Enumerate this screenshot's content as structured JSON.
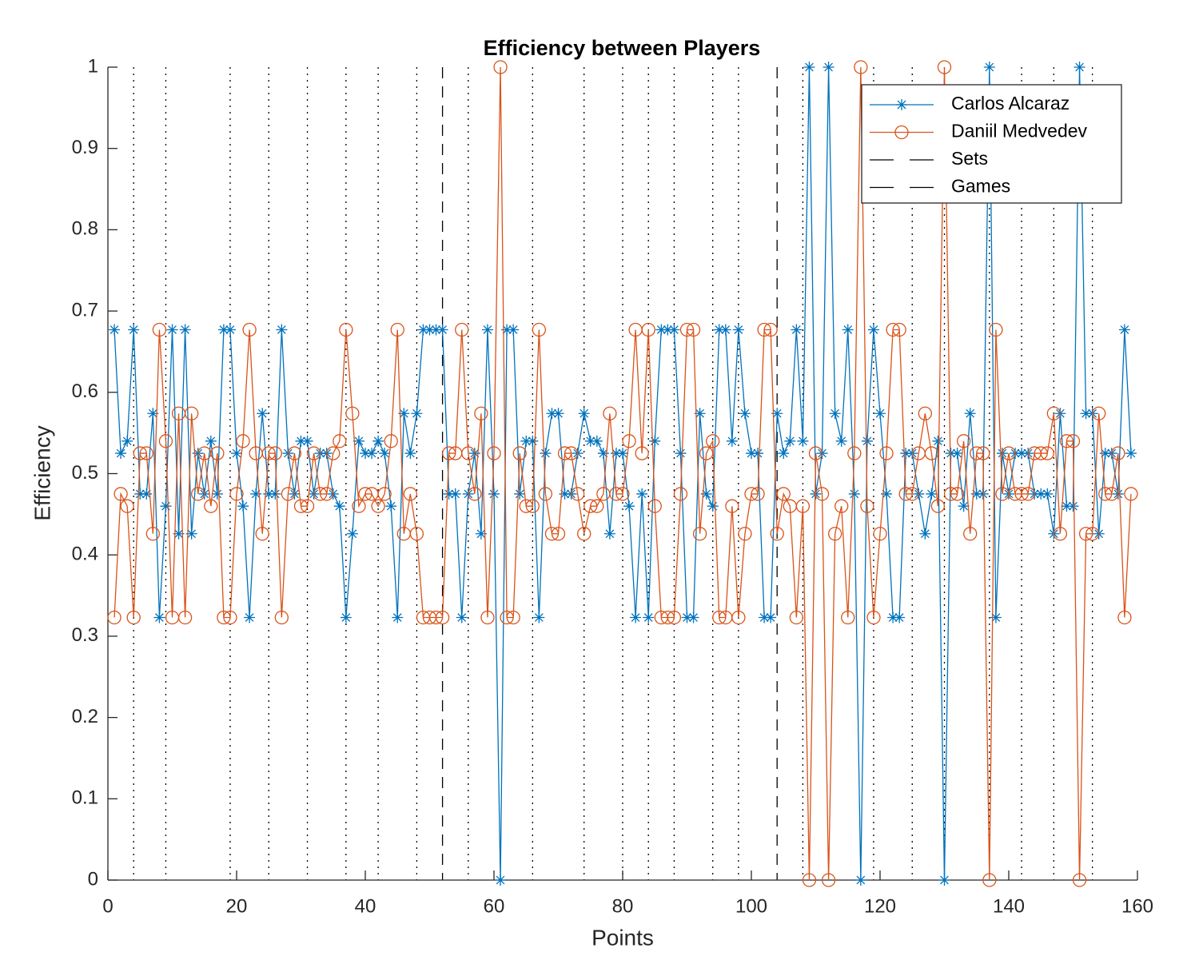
{
  "chart_data": {
    "type": "line",
    "title": "Efficiency between Players",
    "xlabel": "Points",
    "ylabel": "Efficiency",
    "x": [
      1,
      2,
      3,
      4,
      5,
      6,
      7,
      8,
      9,
      10,
      11,
      12,
      13,
      14,
      15,
      16,
      17,
      18,
      19,
      20,
      21,
      22,
      23,
      24,
      25,
      26,
      27,
      28,
      29,
      30,
      31,
      32,
      33,
      34,
      35,
      36,
      37,
      38,
      39,
      40,
      41,
      42,
      43,
      44,
      45,
      46,
      47,
      48,
      49,
      50,
      51,
      52,
      53,
      54,
      55,
      56,
      57,
      58,
      59,
      60,
      61,
      62,
      63,
      64,
      65,
      66,
      67,
      68,
      69,
      70,
      71,
      72,
      73,
      74,
      75,
      76,
      77,
      78,
      79,
      80,
      81,
      82,
      83,
      84,
      85,
      86,
      87,
      88,
      89,
      90,
      91,
      92,
      93,
      94,
      95,
      96,
      97,
      98,
      99,
      100,
      101,
      102,
      103,
      104,
      105,
      106,
      107,
      108,
      109,
      110,
      111,
      112,
      113,
      114,
      115,
      116,
      117,
      118,
      119,
      120,
      121,
      122,
      123,
      124,
      125,
      126,
      127,
      128,
      129,
      130,
      131,
      132,
      133,
      134,
      135,
      136,
      137,
      138,
      139,
      140,
      141,
      142,
      143,
      144,
      145,
      146,
      147,
      148,
      149,
      150,
      151,
      152,
      153,
      154,
      155,
      156,
      157,
      158,
      159
    ],
    "series": [
      {
        "name": "Carlos Alcaraz",
        "color": "#0072bd",
        "marker": "asterisk",
        "values": [
          0.677,
          0.525,
          0.54,
          0.677,
          0.475,
          0.475,
          0.574,
          0.323,
          0.46,
          0.677,
          0.426,
          0.677,
          0.426,
          0.525,
          0.475,
          0.54,
          0.475,
          0.677,
          0.677,
          0.525,
          0.46,
          0.323,
          0.475,
          0.574,
          0.475,
          0.475,
          0.677,
          0.525,
          0.475,
          0.54,
          0.54,
          0.475,
          0.525,
          0.525,
          0.475,
          0.46,
          0.323,
          0.426,
          0.54,
          0.525,
          0.525,
          0.54,
          0.525,
          0.46,
          0.323,
          0.574,
          0.525,
          0.574,
          0.677,
          0.677,
          0.677,
          0.677,
          0.475,
          0.475,
          0.323,
          0.475,
          0.525,
          0.426,
          0.677,
          0.475,
          0,
          0.677,
          0.677,
          0.475,
          0.54,
          0.54,
          0.323,
          0.525,
          0.574,
          0.574,
          0.475,
          0.475,
          0.525,
          0.574,
          0.54,
          0.54,
          0.525,
          0.426,
          0.525,
          0.525,
          0.46,
          0.323,
          0.475,
          0.323,
          0.54,
          0.677,
          0.677,
          0.677,
          0.525,
          0.323,
          0.323,
          0.574,
          0.475,
          0.46,
          0.677,
          0.677,
          0.54,
          0.677,
          0.574,
          0.525,
          0.525,
          0.323,
          0.323,
          0.574,
          0.525,
          0.54,
          0.677,
          0.54,
          1,
          0.475,
          0.525,
          1,
          0.574,
          0.54,
          0.677,
          0.475,
          0,
          0.54,
          0.677,
          0.574,
          0.475,
          0.323,
          0.323,
          0.525,
          0.525,
          0.475,
          0.426,
          0.475,
          0.54,
          0,
          0.525,
          0.525,
          0.46,
          0.574,
          0.475,
          0.475,
          1,
          0.323,
          0.525,
          0.475,
          0.525,
          0.525,
          0.525,
          0.475,
          0.475,
          0.475,
          0.426,
          0.574,
          0.46,
          0.46,
          1,
          0.574,
          0.574,
          0.426,
          0.525,
          0.525,
          0.475,
          0.677,
          0.525
        ]
      },
      {
        "name": "Daniil Medvedev",
        "color": "#d95319",
        "marker": "circle",
        "values": [
          0.323,
          0.475,
          0.46,
          0.323,
          0.525,
          0.525,
          0.426,
          0.677,
          0.54,
          0.323,
          0.574,
          0.323,
          0.574,
          0.475,
          0.525,
          0.46,
          0.525,
          0.323,
          0.323,
          0.475,
          0.54,
          0.677,
          0.525,
          0.426,
          0.525,
          0.525,
          0.323,
          0.475,
          0.525,
          0.46,
          0.46,
          0.525,
          0.475,
          0.475,
          0.525,
          0.54,
          0.677,
          0.574,
          0.46,
          0.475,
          0.475,
          0.46,
          0.475,
          0.54,
          0.677,
          0.426,
          0.475,
          0.426,
          0.323,
          0.323,
          0.323,
          0.323,
          0.525,
          0.525,
          0.677,
          0.525,
          0.475,
          0.574,
          0.323,
          0.525,
          1,
          0.323,
          0.323,
          0.525,
          0.46,
          0.46,
          0.677,
          0.475,
          0.426,
          0.426,
          0.525,
          0.525,
          0.475,
          0.426,
          0.46,
          0.46,
          0.475,
          0.574,
          0.475,
          0.475,
          0.54,
          0.677,
          0.525,
          0.677,
          0.46,
          0.323,
          0.323,
          0.323,
          0.475,
          0.677,
          0.677,
          0.426,
          0.525,
          0.54,
          0.323,
          0.323,
          0.46,
          0.323,
          0.426,
          0.475,
          0.475,
          0.677,
          0.677,
          0.426,
          0.475,
          0.46,
          0.323,
          0.46,
          0,
          0.525,
          0.475,
          0,
          0.426,
          0.46,
          0.323,
          0.525,
          1,
          0.46,
          0.323,
          0.426,
          0.525,
          0.677,
          0.677,
          0.475,
          0.475,
          0.525,
          0.574,
          0.525,
          0.46,
          1,
          0.475,
          0.475,
          0.54,
          0.426,
          0.525,
          0.525,
          0,
          0.677,
          0.475,
          0.525,
          0.475,
          0.475,
          0.475,
          0.525,
          0.525,
          0.525,
          0.574,
          0.426,
          0.54,
          0.54,
          0,
          0.426,
          0.426,
          0.574,
          0.475,
          0.475,
          0.525,
          0.323,
          0.475
        ]
      }
    ],
    "vlines": [
      {
        "name": "Sets",
        "style": "dashed",
        "x": [
          52,
          104
        ]
      },
      {
        "name": "Games",
        "style": "dotted",
        "x": [
          4,
          9,
          19,
          25,
          31,
          37,
          42,
          48,
          56,
          66,
          74,
          80,
          84,
          88,
          94,
          98,
          108,
          119,
          125,
          130,
          137,
          142,
          147,
          153
        ]
      }
    ],
    "xlim": [
      0,
      160
    ],
    "xticks": [
      0,
      20,
      40,
      60,
      80,
      100,
      120,
      140,
      160
    ],
    "ylim": [
      0,
      1
    ],
    "yticks": [
      0,
      0.1,
      0.2,
      0.3,
      0.4,
      0.5,
      0.6,
      0.7,
      0.8,
      0.9,
      1
    ],
    "legend": "upper right"
  }
}
